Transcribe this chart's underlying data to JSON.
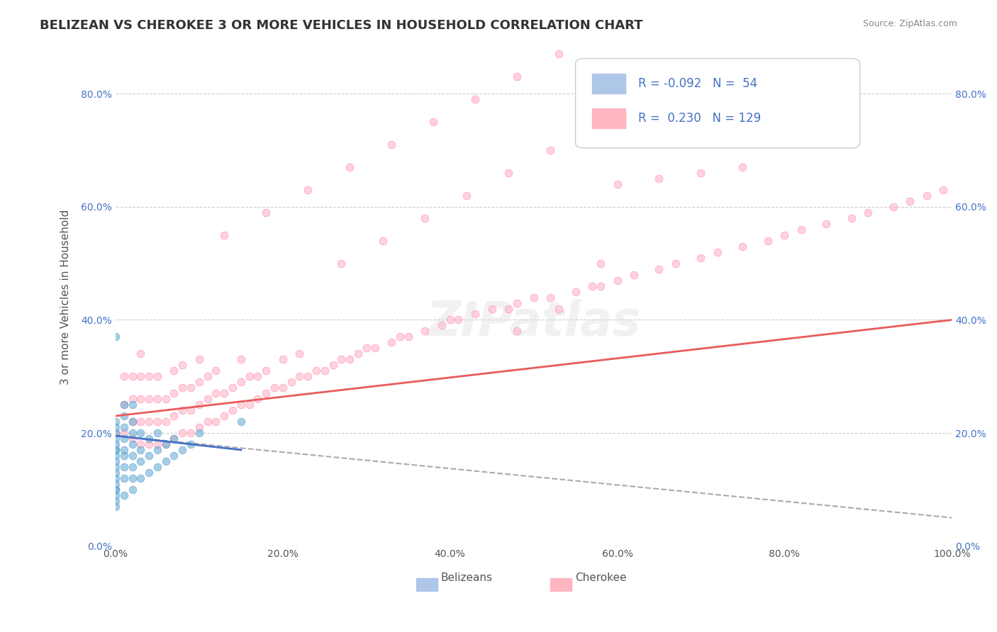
{
  "title": "BELIZEAN VS CHEROKEE 3 OR MORE VEHICLES IN HOUSEHOLD CORRELATION CHART",
  "source": "Source: ZipAtlas.com",
  "xlabel": "",
  "ylabel": "3 or more Vehicles in Household",
  "xlim": [
    0.0,
    1.0
  ],
  "ylim": [
    0.0,
    0.88
  ],
  "x_ticks": [
    0.0,
    0.2,
    0.4,
    0.6,
    0.8,
    1.0
  ],
  "x_tick_labels": [
    "0.0%",
    "20.0%",
    "40.0%",
    "60.0%",
    "80.0%",
    "100.0%"
  ],
  "y_ticks": [
    0.0,
    0.2,
    0.4,
    0.6,
    0.8
  ],
  "y_tick_labels": [
    "0.0%",
    "20.0%",
    "40.0%",
    "60.0%",
    "80.0%"
  ],
  "legend_entries": [
    {
      "label": "R = -0.092   N =  54",
      "color": "#aec6e8",
      "marker_color": "#aec6e8"
    },
    {
      "label": "R =  0.230   N = 129",
      "color": "#ffb6c1",
      "marker_color": "#ffb6c1"
    }
  ],
  "belizean_scatter": {
    "x": [
      0.0,
      0.0,
      0.0,
      0.0,
      0.0,
      0.0,
      0.0,
      0.0,
      0.0,
      0.0,
      0.0,
      0.0,
      0.0,
      0.0,
      0.0,
      0.0,
      0.0,
      0.0,
      0.0,
      0.01,
      0.01,
      0.01,
      0.01,
      0.01,
      0.01,
      0.01,
      0.01,
      0.01,
      0.02,
      0.02,
      0.02,
      0.02,
      0.02,
      0.02,
      0.02,
      0.02,
      0.03,
      0.03,
      0.03,
      0.03,
      0.04,
      0.04,
      0.04,
      0.05,
      0.05,
      0.05,
      0.06,
      0.06,
      0.07,
      0.07,
      0.08,
      0.09,
      0.1,
      0.15
    ],
    "y": [
      0.07,
      0.08,
      0.09,
      0.1,
      0.1,
      0.11,
      0.12,
      0.13,
      0.14,
      0.15,
      0.16,
      0.17,
      0.17,
      0.18,
      0.19,
      0.2,
      0.21,
      0.22,
      0.37,
      0.09,
      0.12,
      0.14,
      0.16,
      0.17,
      0.19,
      0.21,
      0.23,
      0.25,
      0.1,
      0.12,
      0.14,
      0.16,
      0.18,
      0.2,
      0.22,
      0.25,
      0.12,
      0.15,
      0.17,
      0.2,
      0.13,
      0.16,
      0.19,
      0.14,
      0.17,
      0.2,
      0.15,
      0.18,
      0.16,
      0.19,
      0.17,
      0.18,
      0.2,
      0.22
    ],
    "color": "#6baed6",
    "alpha": 0.6,
    "size": 60,
    "edgecolor": "#4292c6"
  },
  "cherokee_scatter": {
    "x": [
      0.0,
      0.01,
      0.01,
      0.01,
      0.02,
      0.02,
      0.02,
      0.02,
      0.03,
      0.03,
      0.03,
      0.03,
      0.03,
      0.04,
      0.04,
      0.04,
      0.04,
      0.05,
      0.05,
      0.05,
      0.05,
      0.06,
      0.06,
      0.06,
      0.07,
      0.07,
      0.07,
      0.07,
      0.08,
      0.08,
      0.08,
      0.08,
      0.09,
      0.09,
      0.09,
      0.1,
      0.1,
      0.1,
      0.1,
      0.11,
      0.11,
      0.11,
      0.12,
      0.12,
      0.12,
      0.13,
      0.13,
      0.14,
      0.14,
      0.15,
      0.15,
      0.15,
      0.16,
      0.16,
      0.17,
      0.17,
      0.18,
      0.18,
      0.19,
      0.2,
      0.2,
      0.21,
      0.22,
      0.22,
      0.23,
      0.24,
      0.25,
      0.26,
      0.27,
      0.28,
      0.29,
      0.3,
      0.31,
      0.33,
      0.34,
      0.35,
      0.37,
      0.39,
      0.4,
      0.41,
      0.43,
      0.45,
      0.47,
      0.48,
      0.5,
      0.52,
      0.55,
      0.57,
      0.6,
      0.62,
      0.65,
      0.67,
      0.7,
      0.72,
      0.75,
      0.78,
      0.8,
      0.82,
      0.85,
      0.88,
      0.9,
      0.93,
      0.95,
      0.97,
      0.99,
      0.6,
      0.65,
      0.7,
      0.75,
      0.48,
      0.53,
      0.58,
      0.27,
      0.32,
      0.37,
      0.42,
      0.47,
      0.52,
      0.57,
      0.13,
      0.18,
      0.23,
      0.28,
      0.33,
      0.38,
      0.43,
      0.48,
      0.53,
      0.58
    ],
    "y": [
      0.2,
      0.2,
      0.25,
      0.3,
      0.19,
      0.22,
      0.26,
      0.3,
      0.18,
      0.22,
      0.26,
      0.3,
      0.34,
      0.18,
      0.22,
      0.26,
      0.3,
      0.18,
      0.22,
      0.26,
      0.3,
      0.18,
      0.22,
      0.26,
      0.19,
      0.23,
      0.27,
      0.31,
      0.2,
      0.24,
      0.28,
      0.32,
      0.2,
      0.24,
      0.28,
      0.21,
      0.25,
      0.29,
      0.33,
      0.22,
      0.26,
      0.3,
      0.22,
      0.27,
      0.31,
      0.23,
      0.27,
      0.24,
      0.28,
      0.25,
      0.29,
      0.33,
      0.25,
      0.3,
      0.26,
      0.3,
      0.27,
      0.31,
      0.28,
      0.28,
      0.33,
      0.29,
      0.3,
      0.34,
      0.3,
      0.31,
      0.31,
      0.32,
      0.33,
      0.33,
      0.34,
      0.35,
      0.35,
      0.36,
      0.37,
      0.37,
      0.38,
      0.39,
      0.4,
      0.4,
      0.41,
      0.42,
      0.42,
      0.43,
      0.44,
      0.44,
      0.45,
      0.46,
      0.47,
      0.48,
      0.49,
      0.5,
      0.51,
      0.52,
      0.53,
      0.54,
      0.55,
      0.56,
      0.57,
      0.58,
      0.59,
      0.6,
      0.61,
      0.62,
      0.63,
      0.64,
      0.65,
      0.66,
      0.67,
      0.38,
      0.42,
      0.46,
      0.5,
      0.54,
      0.58,
      0.62,
      0.66,
      0.7,
      0.74,
      0.55,
      0.59,
      0.63,
      0.67,
      0.71,
      0.75,
      0.79,
      0.83,
      0.87,
      0.5
    ],
    "color": "#ffb6c1",
    "alpha": 0.6,
    "size": 60,
    "edgecolor": "#ff69b4"
  },
  "belizean_trendline": {
    "x_start": 0.0,
    "x_end": 0.15,
    "y_start": 0.195,
    "y_end": 0.17,
    "color": "#4472c4",
    "linewidth": 2.0,
    "linestyle": "solid"
  },
  "cherokee_trendline": {
    "x_start": 0.0,
    "x_end": 1.0,
    "y_start": 0.23,
    "y_end": 0.4,
    "color": "#e85c5c",
    "linewidth": 2.0,
    "linestyle": "solid"
  },
  "dashed_line_blue": {
    "x_start": 0.0,
    "x_end": 1.0,
    "y_start": 0.195,
    "y_end": 0.05,
    "color": "#aaaaaa",
    "linewidth": 1.5,
    "linestyle": "dashed"
  },
  "background_color": "#ffffff",
  "grid_color": "#cccccc",
  "title_fontsize": 13,
  "label_fontsize": 11,
  "tick_fontsize": 10,
  "watermark_text": "ZIPatlas",
  "watermark_color": "#dddddd",
  "watermark_fontsize": 48,
  "right_tick_color": "#4472c4"
}
